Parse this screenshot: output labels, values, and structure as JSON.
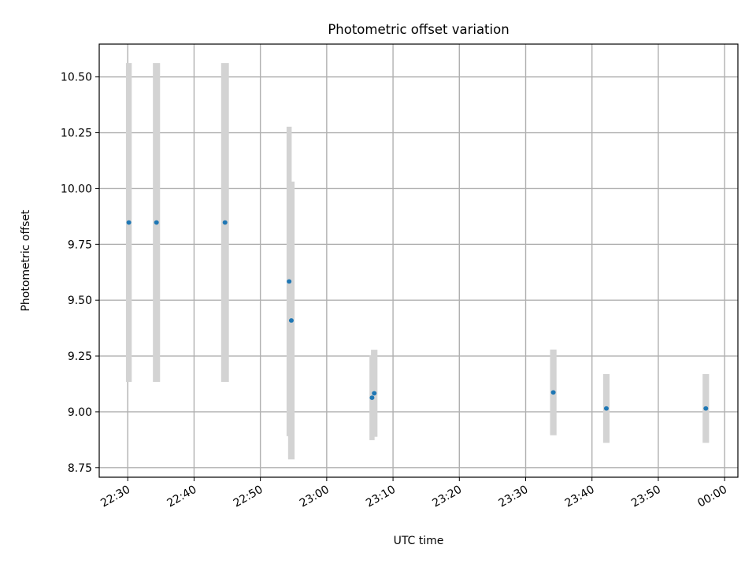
{
  "chart_data": {
    "type": "scatter",
    "title": "Photometric offset variation",
    "xlabel": "UTC time",
    "ylabel": "Photometric offset",
    "grid": true,
    "xlim_minutes": [
      1345.7,
      1442.0
    ],
    "ylim": [
      8.707,
      10.647
    ],
    "x_tick_labels": [
      "22:30",
      "22:40",
      "22:50",
      "23:00",
      "23:10",
      "23:20",
      "23:30",
      "23:40",
      "23:50",
      "00:00"
    ],
    "x_tick_minutes": [
      1350,
      1360,
      1370,
      1380,
      1390,
      1400,
      1410,
      1420,
      1430,
      1440
    ],
    "y_ticks": [
      8.75,
      9.0,
      9.25,
      9.5,
      9.75,
      10.0,
      10.25,
      10.5
    ],
    "y_tick_labels": [
      "8.75",
      "9.00",
      "9.25",
      "9.50",
      "9.75",
      "10.00",
      "10.25",
      "10.50"
    ],
    "colors": {
      "marker": "#1f77b4",
      "errorbar": "#d3d3d3"
    },
    "points": [
      {
        "time": "22:30:10",
        "y": 9.848,
        "ylow": 9.134,
        "yhigh": 10.562,
        "span": 0.4
      },
      {
        "time": "22:34:20",
        "y": 9.848,
        "ylow": 9.134,
        "yhigh": 10.562,
        "span": 0.6
      },
      {
        "time": "22:44:40",
        "y": 9.848,
        "ylow": 9.134,
        "yhigh": 10.562,
        "span": 0.7
      },
      {
        "time": "22:54:20",
        "y": 9.584,
        "ylow": 8.891,
        "yhigh": 10.277,
        "span": 0.3
      },
      {
        "time": "22:54:40",
        "y": 9.409,
        "ylow": 8.787,
        "yhigh": 10.031,
        "span": 0.5
      },
      {
        "time": "23:06:50",
        "y": 9.063,
        "ylow": 8.873,
        "yhigh": 9.253,
        "span": 0.3
      },
      {
        "time": "23:07:10",
        "y": 9.083,
        "ylow": 8.888,
        "yhigh": 9.278,
        "span": 0.5
      },
      {
        "time": "23:34:10",
        "y": 9.087,
        "ylow": 8.895,
        "yhigh": 9.279,
        "span": 0.5
      },
      {
        "time": "23:42:10",
        "y": 9.015,
        "ylow": 8.861,
        "yhigh": 9.169,
        "span": 0.5
      },
      {
        "time": "23:57:10",
        "y": 9.015,
        "ylow": 8.861,
        "yhigh": 9.169,
        "span": 0.5
      }
    ]
  }
}
